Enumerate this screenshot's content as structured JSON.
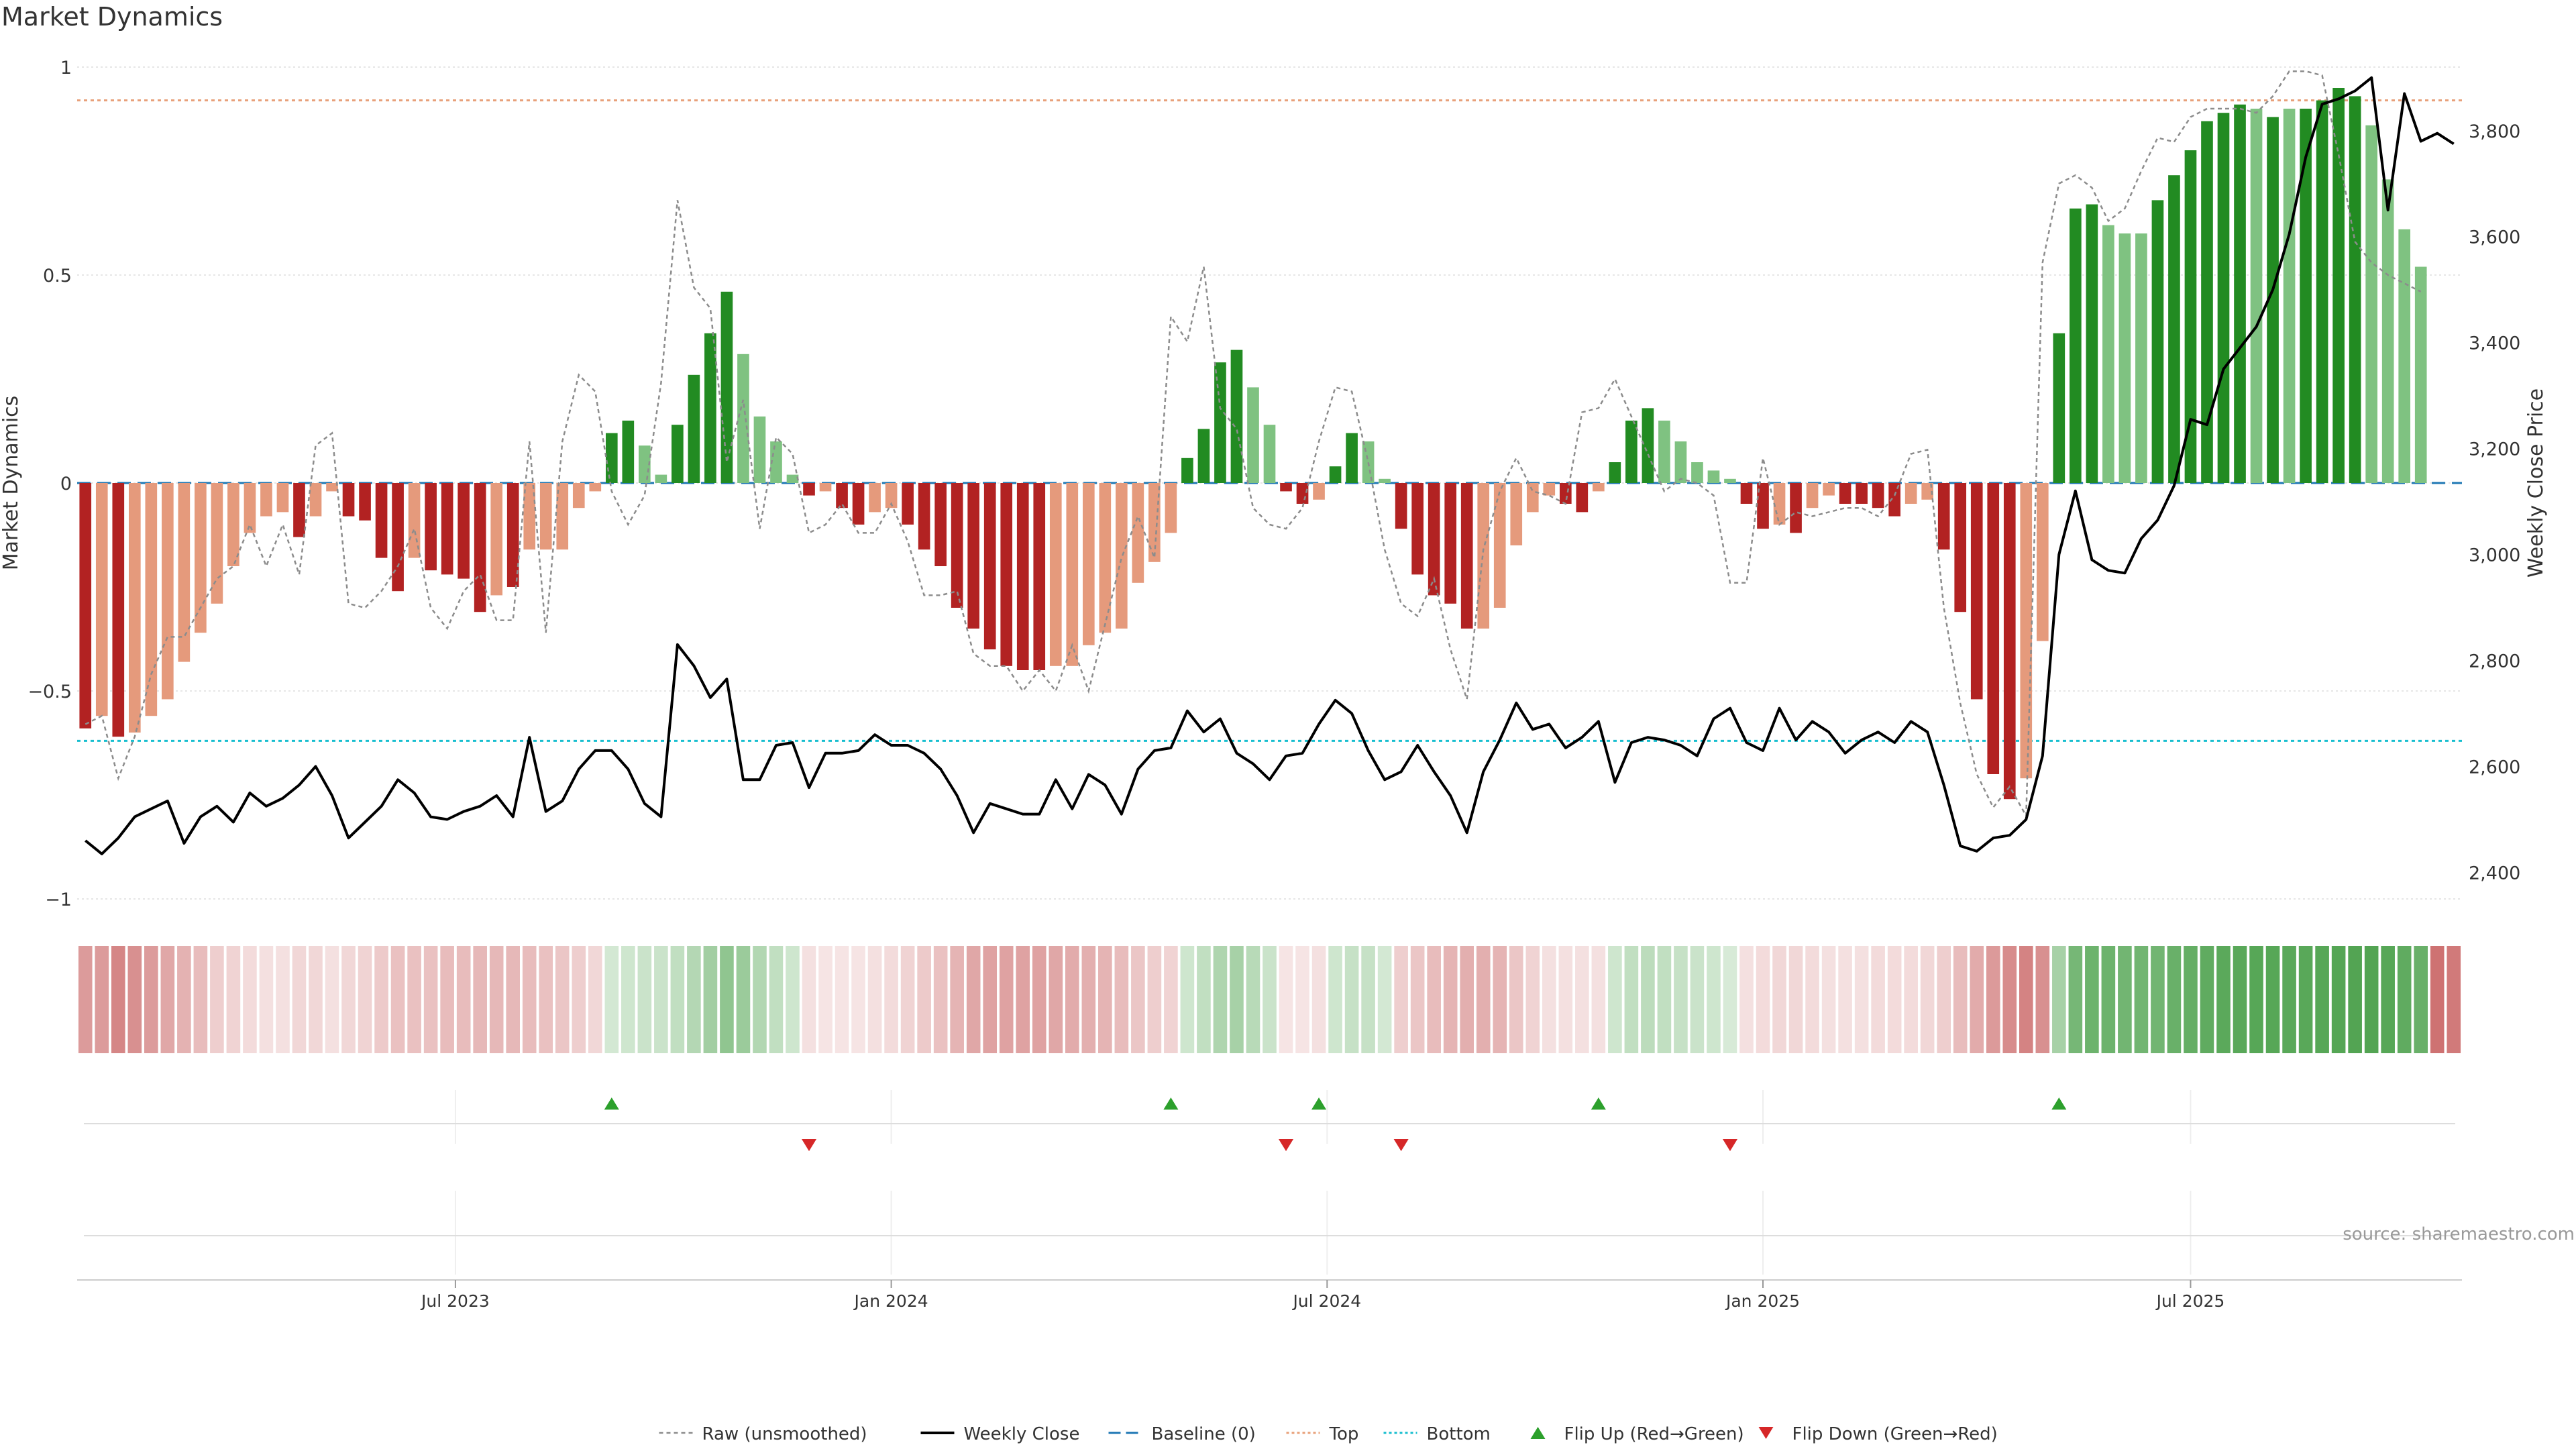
{
  "chart_data": {
    "type": "bar",
    "title": "Market Dynamics",
    "ylabel": "Market Dynamics",
    "y2label": "Weekly Close Price",
    "ylim": [
      -1,
      1
    ],
    "y2lim": [
      2350,
      3920
    ],
    "yticks": [
      {
        "value": 1,
        "label": "1"
      },
      {
        "value": 0.5,
        "label": "0.5"
      },
      {
        "value": 0,
        "label": "0"
      },
      {
        "value": -0.5,
        "label": "−0.5"
      },
      {
        "value": -1,
        "label": "−1"
      }
    ],
    "y2ticks": [
      {
        "value": 3800,
        "label": "3,800"
      },
      {
        "value": 3600,
        "label": "3,600"
      },
      {
        "value": 3400,
        "label": "3,400"
      },
      {
        "value": 3200,
        "label": "3,200"
      },
      {
        "value": 3000,
        "label": "3,000"
      },
      {
        "value": 2800,
        "label": "2,800"
      },
      {
        "value": 2600,
        "label": "2,600"
      },
      {
        "value": 2400,
        "label": "2,400"
      }
    ],
    "xticks": [
      {
        "week": 22.5,
        "label": "Jul 2023"
      },
      {
        "week": 49,
        "label": "Jan 2024"
      },
      {
        "week": 75.5,
        "label": "Jul 2024"
      },
      {
        "week": 102,
        "label": "Jan 2025"
      },
      {
        "week": 128,
        "label": "Jul 2025"
      }
    ],
    "top_line": 0.92,
    "bottom_line": -0.62,
    "baseline": 0,
    "colors": {
      "strong_down": "#b22222",
      "weak_down": "#e59a7c",
      "strong_up": "#228b22",
      "weak_up": "#7fc281",
      "raw": "#8c8c8c",
      "close": "#000000",
      "baseline": "#1f77b4",
      "top": "#e8a07a",
      "bottom": "#17becf",
      "flip_up": "#2ca02c",
      "flip_down": "#d62728"
    },
    "weeks": 145,
    "bars": [
      -0.59,
      -0.56,
      -0.61,
      -0.6,
      -0.56,
      -0.52,
      -0.43,
      -0.36,
      -0.29,
      -0.2,
      -0.12,
      -0.08,
      -0.07,
      -0.13,
      -0.08,
      -0.02,
      -0.08,
      -0.09,
      -0.18,
      -0.26,
      -0.18,
      -0.21,
      -0.22,
      -0.23,
      -0.31,
      -0.27,
      -0.25,
      -0.16,
      -0.16,
      -0.16,
      -0.06,
      -0.02,
      0.12,
      0.15,
      0.09,
      0.02,
      0.14,
      0.26,
      0.36,
      0.46,
      0.31,
      0.16,
      0.1,
      0.02,
      -0.03,
      -0.02,
      -0.06,
      -0.1,
      -0.07,
      -0.06,
      -0.1,
      -0.16,
      -0.2,
      -0.3,
      -0.35,
      -0.4,
      -0.44,
      -0.45,
      -0.45,
      -0.44,
      -0.44,
      -0.39,
      -0.36,
      -0.35,
      -0.24,
      -0.19,
      -0.12,
      0.06,
      0.13,
      0.29,
      0.32,
      0.23,
      0.14,
      -0.02,
      -0.05,
      -0.04,
      0.04,
      0.12,
      0.1,
      0.01,
      -0.11,
      -0.22,
      -0.27,
      -0.29,
      -0.35,
      -0.35,
      -0.3,
      -0.15,
      -0.07,
      -0.03,
      -0.05,
      -0.07,
      -0.02,
      0.05,
      0.15,
      0.18,
      0.15,
      0.1,
      0.05,
      0.03,
      0.01,
      -0.05,
      -0.11,
      -0.1,
      -0.12,
      -0.06,
      -0.03,
      -0.05,
      -0.05,
      -0.06,
      -0.08,
      -0.05,
      -0.04,
      -0.16,
      -0.31,
      -0.52,
      -0.7,
      -0.76,
      -0.71,
      -0.38,
      0.36,
      0.66,
      0.67,
      0.62,
      0.6,
      0.6,
      0.68,
      0.74,
      0.8,
      0.87,
      0.89,
      0.91,
      0.9,
      0.88,
      0.9,
      0.9,
      0.92,
      0.95,
      0.93,
      0.86,
      0.73,
      0.61,
      0.52
    ],
    "bar_shades": [
      "S",
      "W",
      "S",
      "W",
      "W",
      "W",
      "W",
      "W",
      "W",
      "W",
      "W",
      "W",
      "W",
      "S",
      "W",
      "W",
      "S",
      "S",
      "S",
      "S",
      "W",
      "S",
      "S",
      "S",
      "S",
      "W",
      "S",
      "W",
      "W",
      "W",
      "W",
      "W",
      "S",
      "S",
      "W",
      "W",
      "S",
      "S",
      "S",
      "S",
      "W",
      "W",
      "W",
      "W",
      "S",
      "W",
      "S",
      "S",
      "W",
      "W",
      "S",
      "S",
      "S",
      "S",
      "S",
      "S",
      "S",
      "S",
      "S",
      "W",
      "W",
      "W",
      "W",
      "W",
      "W",
      "W",
      "W",
      "S",
      "S",
      "S",
      "S",
      "W",
      "W",
      "S",
      "S",
      "W",
      "S",
      "S",
      "W",
      "W",
      "S",
      "S",
      "S",
      "S",
      "S",
      "W",
      "W",
      "W",
      "W",
      "W",
      "S",
      "S",
      "W",
      "S",
      "S",
      "S",
      "W",
      "W",
      "W",
      "W",
      "W",
      "S",
      "S",
      "W",
      "S",
      "W",
      "W",
      "S",
      "S",
      "S",
      "S",
      "W",
      "W",
      "S",
      "S",
      "S",
      "S",
      "S",
      "W",
      "W",
      "S",
      "S",
      "S",
      "W",
      "W",
      "W",
      "S",
      "S",
      "S",
      "S",
      "S",
      "S",
      "W",
      "S",
      "W",
      "S",
      "S",
      "S",
      "S",
      "W",
      "W",
      "W",
      "W",
      "W",
      "W"
    ],
    "raw": [
      -0.58,
      -0.56,
      -0.71,
      -0.61,
      -0.46,
      -0.37,
      -0.37,
      -0.3,
      -0.23,
      -0.2,
      -0.1,
      -0.2,
      -0.1,
      -0.22,
      0.09,
      0.12,
      -0.29,
      -0.3,
      -0.26,
      -0.2,
      -0.11,
      -0.3,
      -0.35,
      -0.26,
      -0.22,
      -0.33,
      -0.33,
      0.1,
      -0.36,
      0.1,
      0.26,
      0.22,
      -0.02,
      -0.1,
      -0.03,
      0.24,
      0.68,
      0.47,
      0.42,
      0.05,
      0.2,
      -0.11,
      0.11,
      0.07,
      -0.12,
      -0.1,
      -0.05,
      -0.12,
      -0.12,
      -0.05,
      -0.14,
      -0.27,
      -0.27,
      -0.26,
      -0.41,
      -0.44,
      -0.44,
      -0.5,
      -0.45,
      -0.5,
      -0.39,
      -0.5,
      -0.34,
      -0.18,
      -0.08,
      -0.18,
      0.4,
      0.34,
      0.52,
      0.18,
      0.13,
      -0.06,
      -0.1,
      -0.11,
      -0.06,
      0.1,
      0.23,
      0.22,
      0.05,
      -0.16,
      -0.29,
      -0.32,
      -0.23,
      -0.4,
      -0.52,
      -0.16,
      -0.02,
      0.06,
      -0.02,
      -0.03,
      -0.05,
      0.17,
      0.18,
      0.25,
      0.16,
      0.07,
      -0.02,
      0.01,
      0,
      -0.03,
      -0.24,
      -0.24,
      0.06,
      -0.1,
      -0.07,
      -0.08,
      -0.07,
      -0.06,
      -0.06,
      -0.08,
      -0.03,
      0.07,
      0.08,
      -0.3,
      -0.53,
      -0.7,
      -0.78,
      -0.73,
      -0.8,
      0.53,
      0.72,
      0.74,
      0.71,
      0.63,
      0.66,
      0.75,
      0.83,
      0.82,
      0.88,
      0.9,
      0.9,
      0.9,
      0.89,
      0.93,
      0.99,
      0.99,
      0.98,
      0.79,
      0.58,
      0.53,
      0.5,
      0.48,
      0.46
    ],
    "close": [
      2460,
      2435,
      2465,
      2505,
      2520,
      2535,
      2455,
      2505,
      2525,
      2495,
      2550,
      2525,
      2540,
      2565,
      2600,
      2545,
      2465,
      2495,
      2525,
      2575,
      2550,
      2505,
      2500,
      2515,
      2525,
      2545,
      2505,
      2655,
      2515,
      2535,
      2595,
      2630,
      2630,
      2595,
      2530,
      2505,
      2830,
      2790,
      2730,
      2765,
      2575,
      2575,
      2640,
      2645,
      2560,
      2625,
      2625,
      2630,
      2660,
      2640,
      2640,
      2625,
      2595,
      2545,
      2475,
      2530,
      2520,
      2510,
      2510,
      2575,
      2520,
      2585,
      2565,
      2510,
      2595,
      2630,
      2635,
      2705,
      2665,
      2690,
      2625,
      2605,
      2575,
      2620,
      2625,
      2680,
      2725,
      2700,
      2630,
      2575,
      2590,
      2640,
      2590,
      2545,
      2475,
      2590,
      2650,
      2720,
      2670,
      2680,
      2635,
      2655,
      2685,
      2570,
      2645,
      2655,
      2650,
      2640,
      2620,
      2690,
      2710,
      2645,
      2630,
      2710,
      2650,
      2685,
      2665,
      2625,
      2650,
      2665,
      2645,
      2685,
      2665,
      2565,
      2450,
      2440,
      2465,
      2470,
      2500,
      2620,
      3000,
      3120,
      2990,
      2970,
      2965,
      3030,
      3065,
      3130,
      3255,
      3245,
      3350,
      3390,
      3430,
      3500,
      3605,
      3750,
      3850,
      3860,
      3875,
      3900,
      3650,
      3870,
      3780,
      3795,
      3775
    ],
    "heat": [
      0.45,
      0.45,
      0.55,
      0.5,
      0.45,
      0.4,
      0.35,
      0.3,
      0.22,
      0.2,
      0.16,
      0.14,
      0.14,
      0.18,
      0.18,
      0.14,
      0.18,
      0.2,
      0.24,
      0.28,
      0.28,
      0.28,
      0.3,
      0.3,
      0.32,
      0.32,
      0.32,
      0.3,
      0.28,
      0.26,
      0.22,
      0.18,
      0.2,
      0.22,
      0.24,
      0.24,
      0.28,
      0.34,
      0.42,
      0.5,
      0.45,
      0.35,
      0.28,
      0.22,
      0.14,
      0.12,
      0.12,
      0.12,
      0.14,
      0.16,
      0.2,
      0.24,
      0.28,
      0.34,
      0.4,
      0.42,
      0.42,
      0.42,
      0.42,
      0.4,
      0.38,
      0.36,
      0.34,
      0.3,
      0.26,
      0.22,
      0.2,
      0.22,
      0.28,
      0.36,
      0.4,
      0.32,
      0.24,
      0.12,
      0.12,
      0.14,
      0.22,
      0.26,
      0.26,
      0.2,
      0.22,
      0.26,
      0.3,
      0.34,
      0.36,
      0.36,
      0.34,
      0.26,
      0.2,
      0.14,
      0.14,
      0.14,
      0.14,
      0.22,
      0.28,
      0.3,
      0.28,
      0.26,
      0.24,
      0.22,
      0.18,
      0.14,
      0.16,
      0.18,
      0.18,
      0.16,
      0.14,
      0.14,
      0.14,
      0.16,
      0.16,
      0.16,
      0.18,
      0.22,
      0.3,
      0.38,
      0.46,
      0.52,
      0.56,
      0.5,
      0.4,
      0.62,
      0.66,
      0.66,
      0.64,
      0.64,
      0.64,
      0.68,
      0.7,
      0.72,
      0.74,
      0.75,
      0.76,
      0.76,
      0.75,
      0.75,
      0.76,
      0.77,
      0.78,
      0.78,
      0.76,
      0.72,
      0.68,
      0.64,
      0.6
    ],
    "flips_up": [
      32,
      66,
      75,
      92,
      120
    ],
    "flips_down": [
      44,
      73,
      80,
      100
    ],
    "legend": [
      {
        "key": "raw",
        "label": "Raw (unsmoothed)"
      },
      {
        "key": "close",
        "label": "Weekly Close"
      },
      {
        "key": "baseline",
        "label": "Baseline (0)"
      },
      {
        "key": "top",
        "label": "Top"
      },
      {
        "key": "bottom",
        "label": "Bottom"
      },
      {
        "key": "flip_up",
        "label": "Flip Up (Red→Green)"
      },
      {
        "key": "flip_down",
        "label": "Flip Down (Green→Red)"
      }
    ],
    "source": "source: sharemaestro.com"
  }
}
